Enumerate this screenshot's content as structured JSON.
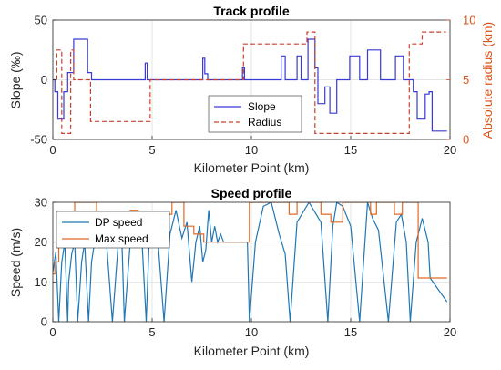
{
  "colors": {
    "slope": "#3a3ad6",
    "radius": "#c8402c",
    "dp_speed": "#1f77b4",
    "max_speed": "#e06a24",
    "right_axis": "#d95319",
    "grid": "#dcdcdc",
    "axis": "#262626"
  },
  "chart_data": [
    {
      "type": "line",
      "title": "Track profile",
      "xlabel": "Kilometer Point (km)",
      "ylabel": "Slope (‰)",
      "ylabel_right": "Absolute radius (km)",
      "xlim": [
        0,
        20
      ],
      "ylim": [
        -50,
        50
      ],
      "ylim_right": [
        0,
        10
      ],
      "xticks": [
        0,
        5,
        10,
        15,
        20
      ],
      "yticks": [
        -50,
        0,
        50
      ],
      "yticks_right": [
        0,
        5,
        10
      ],
      "grid": true,
      "legend": {
        "placement": "center-right",
        "entries": [
          "Slope",
          "Radius"
        ]
      },
      "series": [
        {
          "name": "Slope",
          "axis": "left",
          "style": "solid",
          "x": [
            0,
            0.1,
            0.1,
            0.25,
            0.25,
            0.55,
            0.55,
            0.75,
            0.75,
            1.05,
            1.05,
            1.2,
            1.2,
            1.75,
            1.75,
            1.95,
            1.95,
            2.1,
            2.1,
            4.65,
            4.65,
            4.75,
            4.75,
            4.9,
            4.9,
            7.55,
            7.55,
            7.65,
            7.65,
            7.8,
            7.8,
            9.55,
            9.55,
            9.65,
            9.65,
            11.5,
            11.5,
            11.7,
            11.7,
            12.3,
            12.3,
            12.5,
            12.5,
            12.85,
            12.85,
            13.2,
            13.2,
            13.35,
            13.35,
            13.7,
            13.7,
            13.95,
            13.95,
            14.3,
            14.3,
            14.95,
            14.95,
            15.45,
            15.45,
            15.85,
            15.85,
            16.5,
            16.5,
            17.25,
            17.25,
            17.65,
            17.65,
            18.15,
            18.15,
            18.35,
            18.35,
            18.75,
            18.75,
            18.95,
            18.95,
            19.1,
            19.1,
            19.85
          ],
          "y": [
            0,
            0,
            -10,
            -10,
            -33,
            -33,
            -10,
            -10,
            6,
            6,
            34,
            34,
            34,
            34,
            6,
            6,
            0,
            0,
            0,
            0,
            14,
            14,
            0,
            0,
            0,
            0,
            18,
            18,
            5,
            5,
            0,
            0,
            10,
            10,
            0,
            0,
            20,
            20,
            0,
            0,
            20,
            20,
            0,
            0,
            34,
            34,
            10,
            10,
            -20,
            -20,
            -6,
            -6,
            -28,
            -28,
            0,
            0,
            20,
            20,
            0,
            0,
            25,
            25,
            0,
            0,
            20,
            20,
            0,
            0,
            -10,
            -10,
            -33,
            -33,
            -12,
            -12,
            -10,
            -10,
            -43,
            -43
          ]
        },
        {
          "name": "Radius",
          "axis": "right",
          "style": "dashed",
          "x": [
            0.2,
            0.2,
            0.45,
            0.45,
            0.9,
            0.9,
            1.05,
            1.05,
            1.9,
            1.9,
            4.9,
            4.9,
            7.6,
            7.6,
            9.6,
            9.6,
            12.8,
            12.8,
            13.2,
            13.2,
            17.95,
            17.95,
            18.6,
            18.6,
            19.8
          ],
          "y": [
            5,
            7.5,
            7.5,
            0.5,
            0.5,
            7.5,
            7.5,
            5,
            5,
            1.5,
            1.5,
            5,
            5,
            5,
            5,
            8,
            8,
            9,
            9,
            0.5,
            0.5,
            8,
            8,
            9,
            9
          ]
        }
      ]
    },
    {
      "type": "line",
      "title": "Speed profile",
      "xlabel": "Kilometer Point (km)",
      "ylabel": "Speed (m/s)",
      "xlim": [
        0,
        20
      ],
      "ylim": [
        0,
        30
      ],
      "xticks": [
        0,
        5,
        10,
        15,
        20
      ],
      "yticks": [
        0,
        10,
        20,
        30
      ],
      "grid": true,
      "legend": {
        "placement": "top-left",
        "entries": [
          "DP speed",
          "Max speed"
        ]
      },
      "series": [
        {
          "name": "DP speed",
          "style": "solid",
          "x": [
            0,
            0.15,
            0.3,
            0.45,
            0.6,
            0.75,
            0.8,
            0.95,
            1.1,
            1.25,
            1.45,
            1.6,
            1.8,
            1.95,
            2.1,
            2.4,
            2.7,
            3.0,
            3.3,
            3.45,
            3.6,
            3.9,
            4.2,
            4.45,
            4.7,
            4.85,
            5.0,
            5.3,
            5.6,
            5.9,
            6.2,
            6.5,
            6.75,
            7.0,
            7.2,
            7.4,
            7.55,
            7.7,
            7.85,
            8.0,
            8.15,
            8.3,
            8.45,
            8.6,
            8.7,
            8.8,
            9.8,
            9.9,
            10.2,
            10.6,
            11.0,
            11.4,
            11.7,
            11.95,
            12.3,
            12.9,
            13.5,
            13.85,
            14.1,
            14.3,
            14.6,
            15.0,
            15.45,
            15.85,
            16.1,
            16.4,
            16.9,
            17.3,
            17.55,
            17.8,
            18.0,
            18.3,
            18.6,
            18.9,
            19.0,
            19.85
          ],
          "y": [
            12.5,
            17.5,
            0,
            15,
            20,
            0,
            10,
            17,
            20,
            0,
            15,
            20,
            0,
            15,
            20,
            25,
            20,
            0,
            20,
            25,
            0,
            20,
            23,
            24,
            0,
            20,
            27,
            20,
            0,
            22,
            28,
            21,
            25,
            10,
            20,
            24,
            15,
            18,
            28,
            20,
            24,
            20,
            22,
            20,
            20,
            20,
            20,
            0,
            20,
            29,
            30,
            22,
            17,
            0,
            25,
            30,
            25,
            0,
            24,
            30,
            29,
            24,
            0,
            30,
            26,
            23,
            0,
            25,
            27,
            20,
            0,
            20,
            26,
            20,
            11,
            5
          ]
        },
        {
          "name": "Max speed",
          "style": "solid",
          "x": [
            0,
            0.1,
            0.1,
            0.3,
            0.3,
            0.4,
            0.4,
            0.6,
            0.6,
            1.0,
            1.0,
            1.1,
            1.1,
            2.2,
            2.2,
            3.5,
            3.5,
            3.9,
            3.9,
            4.3,
            4.3,
            4.8,
            4.8,
            5.3,
            5.3,
            6.0,
            6.0,
            6.6,
            6.6,
            7.1,
            7.1,
            7.6,
            7.6,
            8.8,
            8.8,
            9.9,
            9.9,
            10.2,
            10.2,
            11.9,
            11.9,
            12.3,
            12.3,
            13.5,
            13.5,
            14.0,
            14.0,
            14.6,
            14.6,
            15.3,
            15.3,
            16.0,
            16.0,
            16.3,
            16.3,
            17.2,
            17.2,
            17.6,
            17.6,
            18.4,
            18.4,
            19.0,
            19.0,
            19.85
          ],
          "y": [
            12,
            12,
            15,
            15,
            20,
            20,
            25,
            25,
            20,
            20,
            25,
            25,
            30,
            30,
            27,
            27,
            25,
            25,
            28,
            28,
            27,
            27,
            23,
            23,
            27,
            27,
            30,
            30,
            24,
            24,
            22,
            22,
            20,
            20,
            20,
            20,
            30,
            30,
            30,
            30,
            27,
            27,
            30,
            30,
            27,
            27,
            25,
            25,
            30,
            30,
            30,
            30,
            27,
            27,
            30,
            30,
            27,
            27,
            30,
            30,
            11,
            11,
            11,
            11
          ]
        }
      ]
    }
  ]
}
